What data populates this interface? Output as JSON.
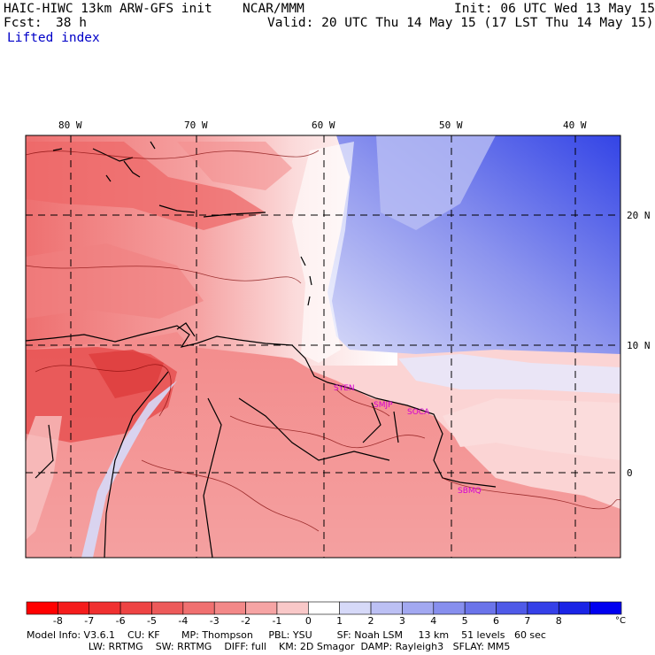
{
  "header": {
    "model_line": "HAIC-HIWC 13km ARW-GFS init",
    "org": "NCAR/MMM",
    "init": "Init: 06 UTC Wed 13 May 15",
    "fcst_label": "Fcst:",
    "fcst_value": "38 h",
    "valid": "Valid: 20 UTC Thu 14 May 15 (17 LST Thu 14 May 15)",
    "field": "Lifted index"
  },
  "map": {
    "lon_labels": [
      "80 W",
      "70 W",
      "60 W",
      "50 W",
      "40 W"
    ],
    "lat_labels": [
      "20 N",
      "10 N",
      "0"
    ],
    "stations": [
      "SYEN",
      "SMJP",
      "SOCA",
      "SBMQ"
    ],
    "colors": {
      "neg_strong": "#e23a3a",
      "neg_light": "#f7b4b4",
      "neutral": "#ffffff",
      "pos_light": "#c9cdf7",
      "pos_strong": "#3b4fe3",
      "station": "#d400d4"
    }
  },
  "colorbar": {
    "ticks": [
      "-8",
      "-7",
      "-6",
      "-5",
      "-4",
      "-3",
      "-2",
      "-1",
      "0",
      "1",
      "2",
      "3",
      "4",
      "5",
      "6",
      "7",
      "8"
    ],
    "unit": "°C",
    "colors": [
      "#ff0000",
      "#f51c1c",
      "#f03030",
      "#ee4444",
      "#ed5a5a",
      "#f07070",
      "#f38888",
      "#f6a4a4",
      "#f9c8c8",
      "#ffffff",
      "#d6d9f8",
      "#bcc0f4",
      "#a2a8f1",
      "#878fee",
      "#6b74ea",
      "#4f5ae8",
      "#3540e8",
      "#1a24e6",
      "#0000f0"
    ]
  },
  "info": {
    "line1": "Model Info: V3.6.1    CU: KF       MP: Thompson     PBL: YSU        SF: Noah LSM     13 km    51 levels   60 sec",
    "line2": "                    LW: RRTMG    SW: RRTMG    DIFF: full    KM: 2D Smagor  DAMP: Rayleigh3   SFLAY: MM5"
  }
}
